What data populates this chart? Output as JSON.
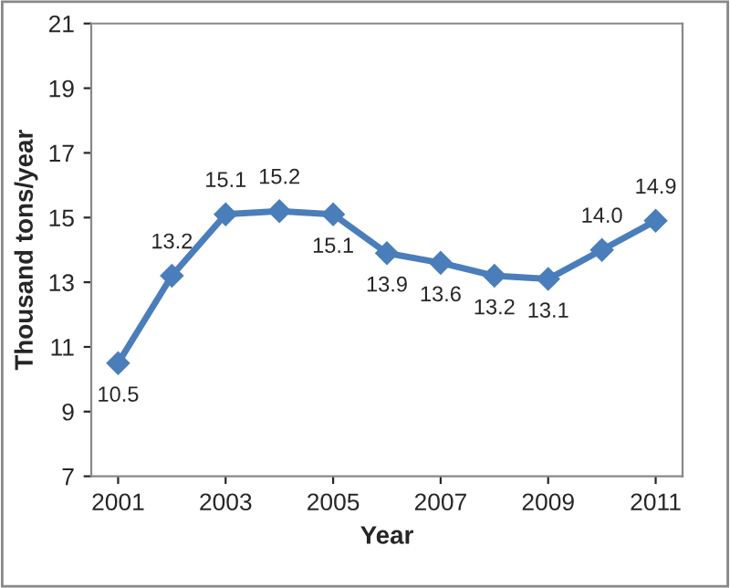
{
  "chart_data": {
    "type": "line",
    "xlabel": "Year",
    "ylabel": "Thousand tons/year",
    "x": [
      2001,
      2002,
      2003,
      2004,
      2005,
      2006,
      2007,
      2008,
      2009,
      2010,
      2011
    ],
    "series": [
      {
        "color": "#4a7ebb",
        "values": [
          10.5,
          13.2,
          15.1,
          15.2,
          15.1,
          13.9,
          13.6,
          13.2,
          13.1,
          14.0,
          14.9
        ]
      }
    ],
    "xlim": [
      2000.5,
      2011.5
    ],
    "xticks": [
      2001,
      2003,
      2005,
      2007,
      2009,
      2011
    ],
    "ylim": [
      7,
      21
    ],
    "yticks": [
      7,
      9,
      11,
      13,
      15,
      17,
      19,
      21
    ],
    "grid": false,
    "marker": "diamond",
    "line_style": "solid",
    "value_labels": [
      "10.5",
      "13.2",
      "15.1",
      "15.2",
      "15.1",
      "13.9",
      "13.6",
      "13.2",
      "13.1",
      "14.0",
      "14.9"
    ]
  }
}
